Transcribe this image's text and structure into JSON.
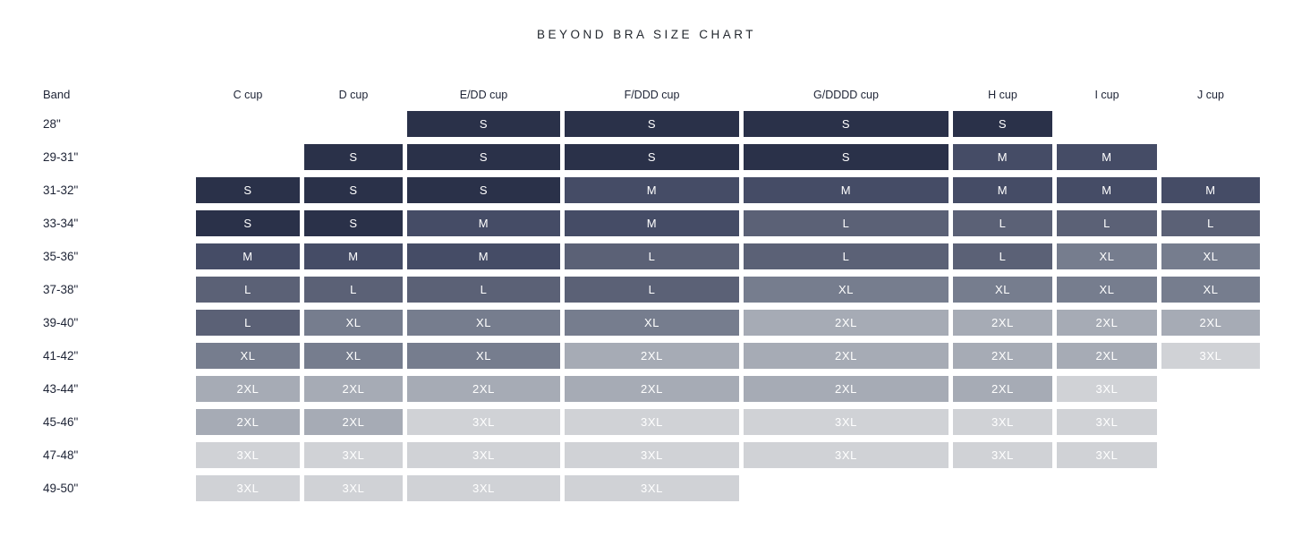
{
  "title": "BEYOND BRA SIZE CHART",
  "chart_data": {
    "type": "table",
    "title": "BEYOND BRA SIZE CHART",
    "row_axis_label": "Band",
    "columns": [
      "C cup",
      "D cup",
      "E/DD cup",
      "F/DDD cup",
      "G/DDDD cup",
      "H cup",
      "I cup",
      "J cup"
    ],
    "rows": [
      "28\"",
      "29-31\"",
      "31-32\"",
      "33-34\"",
      "35-36\"",
      "37-38\"",
      "39-40\"",
      "41-42\"",
      "43-44\"",
      "45-46\"",
      "47-48\"",
      "49-50\""
    ],
    "values": [
      [
        null,
        null,
        "S",
        "S",
        "S",
        "S",
        null,
        null
      ],
      [
        null,
        "S",
        "S",
        "S",
        "S",
        "M",
        "M",
        null
      ],
      [
        "S",
        "S",
        "S",
        "M",
        "M",
        "M",
        "M",
        "M"
      ],
      [
        "S",
        "S",
        "M",
        "M",
        "L",
        "L",
        "L",
        "L"
      ],
      [
        "M",
        "M",
        "M",
        "L",
        "L",
        "L",
        "XL",
        "XL"
      ],
      [
        "L",
        "L",
        "L",
        "L",
        "XL",
        "XL",
        "XL",
        "XL"
      ],
      [
        "L",
        "XL",
        "XL",
        "XL",
        "2XL",
        "2XL",
        "2XL",
        "2XL"
      ],
      [
        "XL",
        "XL",
        "XL",
        "2XL",
        "2XL",
        "2XL",
        "2XL",
        "3XL"
      ],
      [
        "2XL",
        "2XL",
        "2XL",
        "2XL",
        "2XL",
        "2XL",
        "3XL",
        null
      ],
      [
        "2XL",
        "2XL",
        "3XL",
        "3XL",
        "3XL",
        "3XL",
        "3XL",
        null
      ],
      [
        "3XL",
        "3XL",
        "3XL",
        "3XL",
        "3XL",
        "3XL",
        "3XL",
        null
      ],
      [
        "3XL",
        "3XL",
        "3XL",
        "3XL",
        null,
        null,
        null,
        null
      ]
    ],
    "cell_colors": {
      "S": "#2a3149",
      "M": "#454c66",
      "L": "#5b6176",
      "XL": "#767d8e",
      "2XL": "#a6abb5",
      "3XL": "#d0d2d6"
    },
    "cell_text_color": "#ffffff",
    "grid": false,
    "legend_position": "none"
  }
}
